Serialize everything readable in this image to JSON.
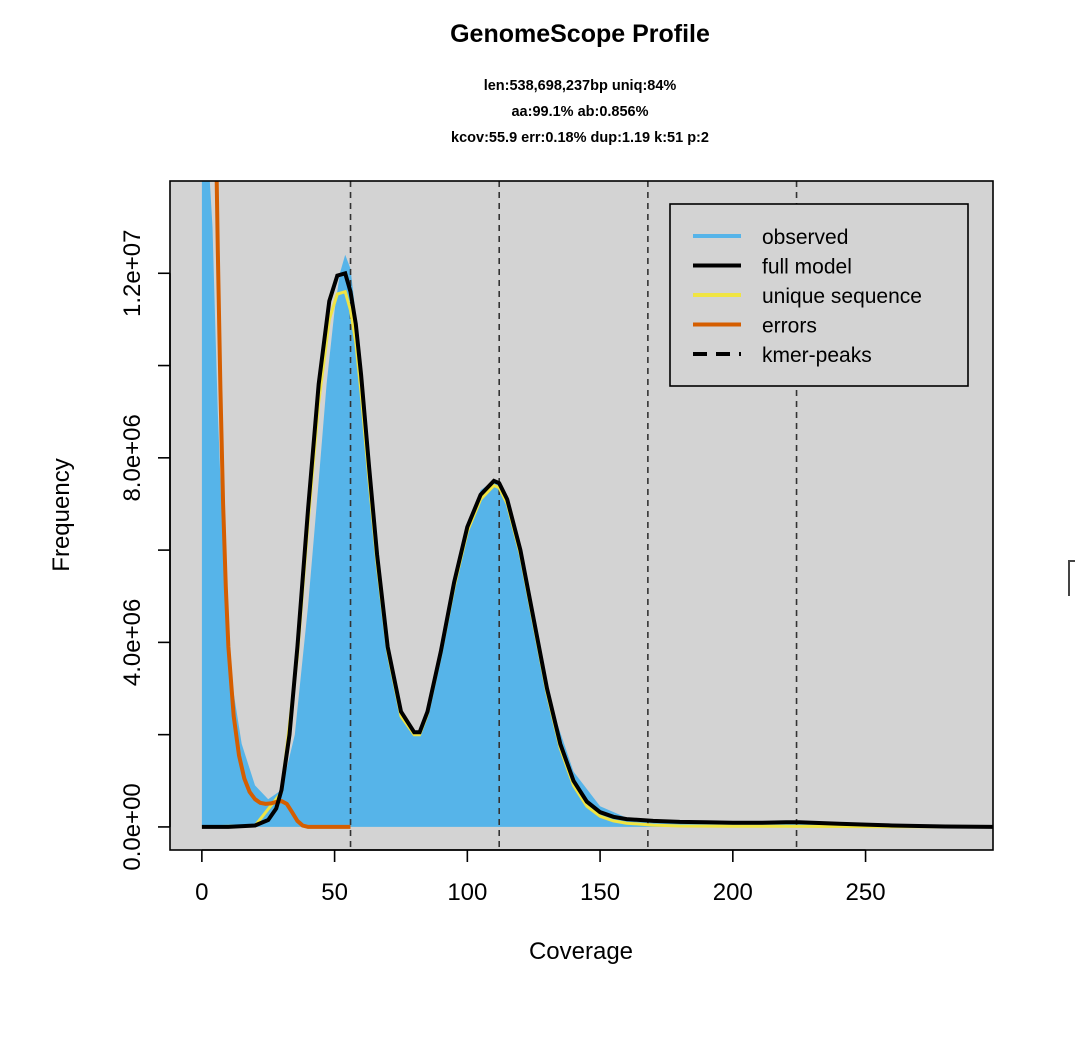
{
  "chart_data": {
    "type": "area",
    "title": "GenomeScope Profile",
    "subtitle": [
      "len:538,698,237bp uniq:84%",
      "aa:99.1% ab:0.856%",
      "kcov:55.9 err:0.18%  dup:1.19  k:51 p:2"
    ],
    "xlabel": "Coverage",
    "ylabel": "Frequency",
    "xlim": [
      -12,
      298
    ],
    "ylim": [
      -500000,
      14000000
    ],
    "x_ticks": [
      0,
      50,
      100,
      150,
      200,
      250
    ],
    "y_ticks": [
      0,
      2000000,
      4000000,
      6000000,
      8000000,
      10000000,
      12000000
    ],
    "y_tick_labels": [
      "0.0e+00",
      "",
      "4.0e+06",
      "",
      "8.0e+06",
      "",
      "1.2e+07"
    ],
    "kmer_peaks": [
      56,
      112,
      168,
      224
    ],
    "legend": {
      "position": "top-right",
      "entries": [
        {
          "label": "observed",
          "color": "#56b4e9",
          "style": "solid"
        },
        {
          "label": "full model",
          "color": "#000000",
          "style": "solid"
        },
        {
          "label": "unique sequence",
          "color": "#f0e442",
          "style": "solid"
        },
        {
          "label": "errors",
          "color": "#d55e00",
          "style": "solid"
        },
        {
          "label": "kmer-peaks",
          "color": "#000000",
          "style": "dashed"
        }
      ]
    },
    "colors": {
      "background": "#d3d3d3",
      "observed": "#56b4e9",
      "full_model": "#000000",
      "unique": "#f0e442",
      "errors": "#d55e00"
    },
    "series": [
      {
        "name": "observed",
        "x": [
          0,
          1,
          2,
          3,
          4,
          5,
          6,
          8,
          10,
          12,
          15,
          20,
          25,
          30,
          35,
          40,
          44,
          47,
          50,
          52,
          54,
          56,
          58,
          60,
          63,
          66,
          70,
          75,
          80,
          82,
          85,
          90,
          95,
          100,
          105,
          110,
          112,
          115,
          120,
          125,
          130,
          140,
          150,
          160,
          170,
          180,
          200,
          220,
          240,
          260,
          280,
          298
        ],
        "y": [
          14000000,
          14000000,
          14000000,
          14000000,
          13000000,
          11000000,
          9000000,
          6000000,
          4000000,
          2900000,
          1800000,
          900000,
          600000,
          800000,
          2000000,
          4800000,
          7500000,
          9600000,
          11200000,
          12000000,
          12400000,
          12100000,
          11100000,
          9800000,
          7800000,
          5900000,
          3800000,
          2400000,
          2050000,
          2100000,
          2600000,
          3900000,
          5300000,
          6500000,
          7300000,
          7500000,
          7450000,
          7100000,
          6000000,
          4400000,
          2900000,
          1200000,
          450000,
          200000,
          120000,
          90000,
          90000,
          100000,
          60000,
          30000,
          10000,
          5000
        ]
      },
      {
        "name": "full model",
        "x": [
          0,
          10,
          20,
          25,
          28,
          30,
          33,
          36,
          40,
          44,
          48,
          51,
          54,
          56,
          58,
          60,
          63,
          66,
          70,
          75,
          80,
          82,
          85,
          90,
          95,
          100,
          105,
          110,
          112,
          115,
          120,
          125,
          130,
          135,
          140,
          145,
          150,
          155,
          160,
          170,
          180,
          190,
          200,
          210,
          220,
          225,
          230,
          240,
          250,
          260,
          270,
          280,
          298
        ],
        "y": [
          0,
          0,
          30000,
          150000,
          400000,
          800000,
          2000000,
          3900000,
          6900000,
          9600000,
          11400000,
          11950000,
          12000000,
          11600000,
          10900000,
          9800000,
          7800000,
          5900000,
          3900000,
          2500000,
          2050000,
          2050000,
          2500000,
          3800000,
          5300000,
          6500000,
          7200000,
          7500000,
          7450000,
          7100000,
          6000000,
          4500000,
          3000000,
          1800000,
          1000000,
          550000,
          320000,
          220000,
          170000,
          130000,
          110000,
          100000,
          90000,
          90000,
          100000,
          100000,
          90000,
          70000,
          50000,
          30000,
          20000,
          10000,
          0
        ]
      },
      {
        "name": "unique sequence",
        "x": [
          0,
          20,
          30,
          36,
          40,
          44,
          48,
          51,
          54,
          56,
          58,
          60,
          63,
          66,
          70,
          75,
          80,
          82,
          85,
          90,
          95,
          100,
          105,
          110,
          112,
          115,
          120,
          125,
          130,
          135,
          140,
          145,
          150,
          155,
          160,
          170,
          180,
          200,
          220,
          240,
          260,
          280,
          298
        ],
        "y": [
          0,
          25000,
          750000,
          3700000,
          6600000,
          9200000,
          11000000,
          11550000,
          11600000,
          11200000,
          10500000,
          9400000,
          7500000,
          5700000,
          3800000,
          2400000,
          2000000,
          2000000,
          2450000,
          3750000,
          5200000,
          6400000,
          7100000,
          7400000,
          7350000,
          7000000,
          5900000,
          4400000,
          2900000,
          1700000,
          900000,
          450000,
          230000,
          130000,
          80000,
          40000,
          20000,
          15000,
          15000,
          10000,
          5000,
          3000,
          0
        ]
      },
      {
        "name": "errors",
        "x": [
          5.6,
          6,
          7,
          8,
          9,
          10,
          12,
          14,
          16,
          18,
          20,
          22,
          24,
          26,
          28,
          30,
          32,
          34,
          36,
          38,
          40,
          45,
          50,
          56
        ],
        "y": [
          14000000,
          12500000,
          9500000,
          7000000,
          5200000,
          3900000,
          2400000,
          1550000,
          1050000,
          760000,
          600000,
          520000,
          500000,
          510000,
          540000,
          560000,
          500000,
          320000,
          130000,
          30000,
          0,
          0,
          0,
          0
        ]
      }
    ]
  }
}
